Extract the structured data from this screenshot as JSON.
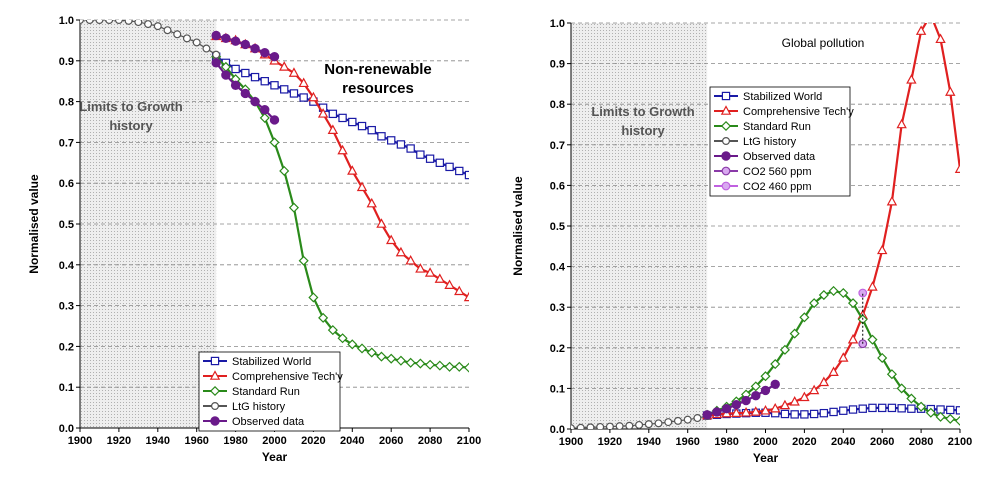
{
  "chart_data": [
    {
      "type": "line",
      "title": "Non-renewable resources",
      "title_lines": [
        "Non-renewable",
        "resources"
      ],
      "history_band_label_lines": [
        "Limits to Growth",
        "history"
      ],
      "xlabel": "Year",
      "ylabel": "Normalised value",
      "xlim": [
        1900,
        2100
      ],
      "ylim": [
        0,
        1
      ],
      "xticks": [
        1900,
        1920,
        1940,
        1960,
        1980,
        2000,
        2020,
        2040,
        2060,
        2080,
        2100
      ],
      "yticks": [
        0.0,
        0.1,
        0.2,
        0.3,
        0.4,
        0.5,
        0.6,
        0.7,
        0.8,
        0.9,
        1.0
      ],
      "ytick_labels": [
        "0.0",
        "0.1",
        "0.2",
        "0.3",
        "0.4",
        "0.5",
        "0.6",
        "0.7",
        "0.8",
        "0.9",
        "1.0"
      ],
      "grid": "horizontal dashed",
      "history_band": [
        1900,
        1970
      ],
      "legend_position": "bottom-center",
      "series": [
        {
          "name": "Stabilized World",
          "color": "#1a1aa6",
          "marker": "square",
          "x": [
            1970,
            1975,
            1980,
            1985,
            1990,
            1995,
            2000,
            2005,
            2010,
            2015,
            2020,
            2025,
            2030,
            2035,
            2040,
            2045,
            2050,
            2055,
            2060,
            2065,
            2070,
            2075,
            2080,
            2085,
            2090,
            2095,
            2100
          ],
          "y": [
            0.91,
            0.895,
            0.88,
            0.87,
            0.86,
            0.85,
            0.84,
            0.83,
            0.82,
            0.81,
            0.8,
            0.785,
            0.77,
            0.76,
            0.75,
            0.74,
            0.73,
            0.715,
            0.705,
            0.695,
            0.685,
            0.67,
            0.66,
            0.65,
            0.64,
            0.63,
            0.62
          ]
        },
        {
          "name": "Comprehensive Tech'y",
          "color": "#e02020",
          "marker": "triangle",
          "x": [
            1970,
            1975,
            1980,
            1985,
            1990,
            1995,
            2000,
            2005,
            2010,
            2015,
            2020,
            2025,
            2030,
            2035,
            2040,
            2045,
            2050,
            2055,
            2060,
            2065,
            2070,
            2075,
            2080,
            2085,
            2090,
            2095,
            2100
          ],
          "y": [
            0.96,
            0.955,
            0.95,
            0.94,
            0.93,
            0.915,
            0.9,
            0.885,
            0.87,
            0.845,
            0.81,
            0.77,
            0.73,
            0.68,
            0.63,
            0.59,
            0.55,
            0.5,
            0.46,
            0.43,
            0.41,
            0.39,
            0.38,
            0.365,
            0.35,
            0.335,
            0.32
          ]
        },
        {
          "name": "Standard Run",
          "color": "#2a8a1a",
          "marker": "diamond",
          "x": [
            1970,
            1975,
            1980,
            1985,
            1990,
            1995,
            2000,
            2005,
            2010,
            2015,
            2020,
            2025,
            2030,
            2035,
            2040,
            2045,
            2050,
            2055,
            2060,
            2065,
            2070,
            2075,
            2080,
            2085,
            2090,
            2095,
            2100
          ],
          "y": [
            0.91,
            0.885,
            0.855,
            0.83,
            0.8,
            0.76,
            0.7,
            0.63,
            0.54,
            0.41,
            0.32,
            0.27,
            0.24,
            0.22,
            0.205,
            0.195,
            0.185,
            0.175,
            0.17,
            0.165,
            0.16,
            0.158,
            0.155,
            0.153,
            0.15,
            0.15,
            0.148
          ]
        },
        {
          "name": "LtG history",
          "color": "#555555",
          "marker": "circle-open",
          "x": [
            1900,
            1905,
            1910,
            1915,
            1920,
            1925,
            1930,
            1935,
            1940,
            1945,
            1950,
            1955,
            1960,
            1965,
            1970
          ],
          "y": [
            1.0,
            1.0,
            1.0,
            1.0,
            1.0,
            0.998,
            0.995,
            0.99,
            0.985,
            0.975,
            0.965,
            0.955,
            0.945,
            0.93,
            0.915
          ]
        },
        {
          "name": "Observed data",
          "color": "#6a1a8a",
          "marker": "circle-filled",
          "groups": [
            {
              "x": [
                1970,
                1975,
                1980,
                1985,
                1990,
                1995,
                2000
              ],
              "y": [
                0.962,
                0.955,
                0.948,
                0.94,
                0.93,
                0.92,
                0.91
              ]
            },
            {
              "x": [
                1970,
                1975,
                1980,
                1985,
                1990,
                1995,
                2000
              ],
              "y": [
                0.895,
                0.865,
                0.84,
                0.82,
                0.8,
                0.78,
                0.755
              ]
            }
          ]
        }
      ]
    },
    {
      "type": "line",
      "title": "Global pollution",
      "title_lines": [
        "Global pollution"
      ],
      "history_band_label_lines": [
        "Limits to Growth",
        "history"
      ],
      "xlabel": "Year",
      "ylabel": "Normalised value",
      "xlim": [
        1900,
        2100
      ],
      "ylim": [
        0,
        1
      ],
      "xticks": [
        1900,
        1920,
        1940,
        1960,
        1980,
        2000,
        2020,
        2040,
        2060,
        2080,
        2100
      ],
      "yticks": [
        0.0,
        0.1,
        0.2,
        0.3,
        0.4,
        0.5,
        0.6,
        0.7,
        0.8,
        0.9,
        1.0
      ],
      "ytick_labels": [
        "0.0",
        "0.1",
        "0.2",
        "0.3",
        "0.4",
        "0.5",
        "0.6",
        "0.7",
        "0.8",
        "0.9",
        "1.0"
      ],
      "grid": "horizontal dashed",
      "history_band": [
        1900,
        1970
      ],
      "legend_position": "top-left",
      "series": [
        {
          "name": "Stabilized World",
          "color": "#1a1aa6",
          "marker": "square",
          "x": [
            1970,
            1975,
            1980,
            1985,
            1990,
            1995,
            2000,
            2005,
            2010,
            2015,
            2020,
            2025,
            2030,
            2035,
            2040,
            2045,
            2050,
            2055,
            2060,
            2065,
            2070,
            2075,
            2080,
            2085,
            2090,
            2095,
            2100
          ],
          "y": [
            0.033,
            0.035,
            0.037,
            0.038,
            0.039,
            0.04,
            0.04,
            0.039,
            0.037,
            0.036,
            0.036,
            0.037,
            0.039,
            0.042,
            0.045,
            0.048,
            0.05,
            0.052,
            0.052,
            0.052,
            0.051,
            0.05,
            0.05,
            0.049,
            0.048,
            0.047,
            0.046
          ]
        },
        {
          "name": "Comprehensive Tech'y",
          "color": "#e02020",
          "marker": "triangle",
          "x": [
            1970,
            1975,
            1980,
            1985,
            1990,
            1995,
            2000,
            2005,
            2010,
            2015,
            2020,
            2025,
            2030,
            2035,
            2040,
            2045,
            2050,
            2055,
            2060,
            2065,
            2070,
            2075,
            2080,
            2085,
            2090,
            2095,
            2100
          ],
          "y": [
            0.033,
            0.036,
            0.038,
            0.039,
            0.04,
            0.042,
            0.045,
            0.05,
            0.058,
            0.067,
            0.078,
            0.095,
            0.115,
            0.14,
            0.175,
            0.22,
            0.28,
            0.35,
            0.44,
            0.56,
            0.75,
            0.86,
            0.98,
            1.02,
            0.96,
            0.83,
            0.64
          ]
        },
        {
          "name": "Standard Run",
          "color": "#2a8a1a",
          "marker": "diamond",
          "x": [
            1970,
            1975,
            1980,
            1985,
            1990,
            1995,
            2000,
            2005,
            2010,
            2015,
            2020,
            2025,
            2030,
            2035,
            2040,
            2045,
            2050,
            2055,
            2060,
            2065,
            2070,
            2075,
            2080,
            2085,
            2090,
            2095,
            2100
          ],
          "y": [
            0.035,
            0.045,
            0.055,
            0.068,
            0.085,
            0.105,
            0.13,
            0.16,
            0.195,
            0.235,
            0.275,
            0.31,
            0.33,
            0.34,
            0.335,
            0.31,
            0.27,
            0.22,
            0.175,
            0.135,
            0.1,
            0.075,
            0.055,
            0.04,
            0.03,
            0.025,
            0.02
          ]
        },
        {
          "name": "LtG history",
          "color": "#555555",
          "marker": "circle-open",
          "x": [
            1900,
            1905,
            1910,
            1915,
            1920,
            1925,
            1930,
            1935,
            1940,
            1945,
            1950,
            1955,
            1960,
            1965,
            1970
          ],
          "y": [
            0.002,
            0.003,
            0.004,
            0.005,
            0.006,
            0.007,
            0.008,
            0.01,
            0.012,
            0.014,
            0.017,
            0.02,
            0.023,
            0.027,
            0.032
          ]
        },
        {
          "name": "Observed data",
          "color": "#6a1a8a",
          "marker": "circle-filled",
          "groups": [
            {
              "x": [
                1970,
                1975,
                1980,
                1985,
                1990,
                1995,
                2000,
                2005
              ],
              "y": [
                0.035,
                0.042,
                0.05,
                0.06,
                0.07,
                0.082,
                0.095,
                0.11
              ]
            }
          ]
        },
        {
          "name": "CO2 560 ppm",
          "color": "#8a3aa8",
          "marker": "circle-light",
          "x": [
            2050
          ],
          "y": [
            0.21
          ]
        },
        {
          "name": "CO2 460 ppm",
          "color": "#c060e0",
          "marker": "circle-light",
          "x": [
            2050
          ],
          "y": [
            0.335
          ]
        }
      ]
    }
  ]
}
